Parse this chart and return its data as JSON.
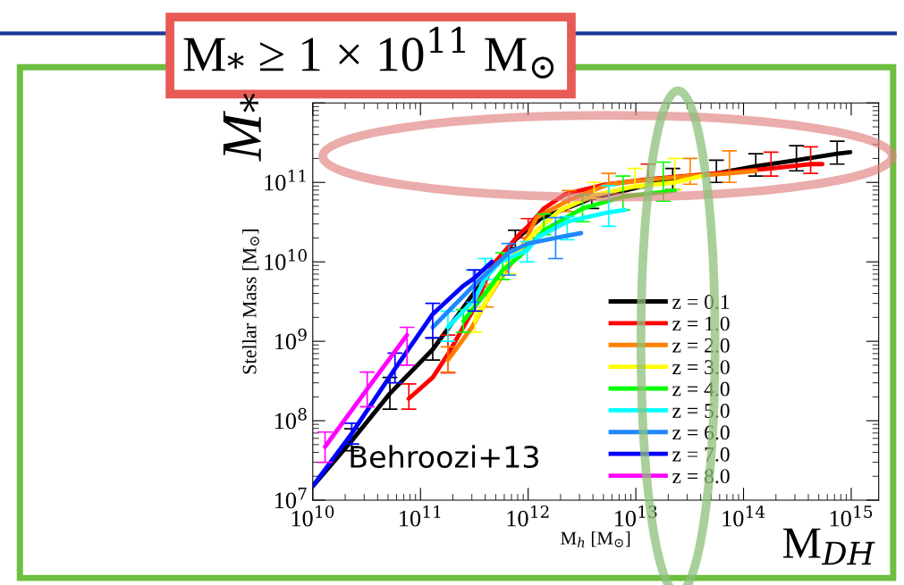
{
  "chart_data": {
    "type": "line",
    "title": "M$_{*}$ ≥ 1 × 10$^{11}$ M$_{⊙}$",
    "xlabel": "M$_{h}$ [M$_{⊙}$]",
    "ylabel": "Stellar Mass [M$_{⊙}$]",
    "annotations": [
      "M$_{*}$",
      "M$_{DH}$",
      "Behroozi+13"
    ],
    "log": "xy",
    "grid": false,
    "legend": "lower right",
    "xlim": [
      10000000000.0,
      1800000000000000.0
    ],
    "ylim": [
      10000000.0,
      1000000000000.0
    ],
    "xticks": [
      {
        "value": 10000000000.0,
        "label": "10$^{10}$"
      },
      {
        "value": 100000000000.0,
        "label": "10$^{11}$"
      },
      {
        "value": 1000000000000.0,
        "label": "10$^{12}$"
      },
      {
        "value": 10000000000000.0,
        "label": "10$^{13}$"
      },
      {
        "value": 100000000000000.0,
        "label": "10$^{14}$"
      },
      {
        "value": 1000000000000000.0,
        "label": "10$^{15}$"
      }
    ],
    "yticks": [
      {
        "value": 10000000.0,
        "label": "10$^{7}$"
      },
      {
        "value": 100000000.0,
        "label": "10$^{8}$"
      },
      {
        "value": 1000000000.0,
        "label": "10$^{9}$"
      },
      {
        "value": 10000000000.0,
        "label": "10$^{10}$"
      },
      {
        "value": 100000000000.0,
        "label": "10$^{11}$"
      },
      {
        "value": 1000000000000.0,
        "label": null
      }
    ],
    "series": [
      {
        "name": "z = 0.1",
        "color": "#000000",
        "x": [
          10000000000.0,
          23000000000.0,
          52000000000.0,
          130000000000.0,
          320000000000.0,
          760000000000.0,
          1300000000000.0,
          3900000000000.0,
          10000000000000.0,
          22000000000000.0,
          56000000000000.0,
          130000000000000.0,
          310000000000000.0,
          740000000000000.0,
          980000000000000.0
        ],
        "values": [
          15000000.0,
          56000000.0,
          220000000.0,
          790000000.0,
          4200000000.0,
          19000000000.0,
          35000000000.0,
          63000000000.0,
          85000000000.0,
          110000000000.0,
          130000000000.0,
          160000000000.0,
          190000000000.0,
          230000000000.0,
          240000000000.0
        ],
        "errors": [
          null,
          [
            42000000.0,
            79000000.0
          ],
          [
            140000000.0,
            350000000.0
          ],
          [
            580000000.0,
            1100000000.0
          ],
          null,
          [
            15000000000.0,
            25000000000.0
          ],
          null,
          [
            47000000000.0,
            85000000000.0
          ],
          null,
          [
            81000000000.0,
            150000000000.0
          ],
          [
            100000000000.0,
            190000000000.0
          ],
          [
            120000000000.0,
            230000000000.0
          ],
          [
            140000000000.0,
            290000000000.0
          ],
          [
            170000000000.0,
            330000000000.0
          ],
          null
        ]
      },
      {
        "name": "z = 1.0",
        "color": "#ff0000",
        "x": [
          78000000000.0,
          130000000000.0,
          180000000000.0,
          320000000000.0,
          460000000000.0,
          850000000000.0,
          1000000000000.0,
          1400000000000.0,
          2200000000000.0,
          5000000000000.0,
          13000000000000.0,
          54000000000000.0,
          180000000000000.0,
          420000000000000.0,
          540000000000000.0
        ],
        "values": [
          190000000.0,
          350000000.0,
          690000000.0,
          2700000000.0,
          8900000000.0,
          23000000000.0,
          28000000000.0,
          47000000000.0,
          71000000000.0,
          93000000000.0,
          110000000000.0,
          130000000000.0,
          150000000000.0,
          170000000000.0,
          170000000000.0
        ],
        "errors": [
          [
            140000000.0,
            290000000.0
          ],
          null,
          [
            400000000.0,
            1200000000.0
          ],
          null,
          null,
          null,
          [
            20000000000.0,
            35000000000.0
          ],
          null,
          null,
          null,
          [
            93000000000.0,
            170000000000.0
          ],
          null,
          [
            120000000000.0,
            240000000000.0
          ],
          [
            130000000000.0,
            280000000000.0
          ],
          null
        ]
      },
      {
        "name": "z = 2.0",
        "color": "#ff8000",
        "x": [
          180000000000.0,
          300000000000.0,
          410000000000.0,
          520000000000.0,
          850000000000.0,
          1200000000000.0,
          2400000000000.0,
          5600000000000.0,
          15000000000000.0,
          32000000000000.0,
          74000000000000.0,
          130000000000000.0
        ],
        "values": [
          580000000.0,
          1500000000.0,
          3200000000.0,
          5400000000.0,
          14000000000.0,
          36000000000.0,
          60000000000.0,
          95000000000.0,
          110000000000.0,
          120000000000.0,
          130000000000.0,
          140000000000.0
        ],
        "errors": [
          [
            410000000.0,
            850000000.0
          ],
          null,
          [
            2700000000.0,
            5200000000.0
          ],
          null,
          null,
          null,
          [
            43000000000.0,
            79000000000.0
          ],
          [
            76000000000.0,
            130000000000.0
          ],
          null,
          [
            95000000000.0,
            200000000000.0
          ],
          [
            100000000000.0,
            250000000000.0
          ],
          null
        ]
      },
      {
        "name": "z = 3.0",
        "color": "#ffff00",
        "x": [
          320000000000.0,
          660000000000.0,
          1200000000000.0,
          2000000000000.0,
          4100000000000.0,
          9800000000000.0,
          23000000000000.0,
          41000000000000.0
        ],
        "values": [
          1800000000.0,
          10000000000.0,
          25000000000.0,
          45000000000.0,
          69000000000.0,
          89000000000.0,
          100000000000.0,
          120000000000.0
        ],
        "errors": [
          [
            1300000000.0,
            2500000000.0
          ],
          [
            7100000000.0,
            13000000000.0
          ],
          null,
          null,
          [
            63000000000.0,
            100000000000.0
          ],
          [
            85000000000.0,
            150000000000.0
          ],
          [
            81000000000.0,
            200000000000.0
          ],
          null
        ]
      },
      {
        "name": "z = 4.0",
        "color": "#00ff00",
        "x": [
          250000000000.0,
          410000000000.0,
          580000000000.0,
          850000000000.0,
          1400000000000.0,
          3200000000000.0,
          7600000000000.0,
          18000000000000.0,
          23000000000000.0
        ],
        "values": [
          1800000000.0,
          4200000000.0,
          7900000000.0,
          12000000000.0,
          25000000000.0,
          47000000000.0,
          66000000000.0,
          76000000000.0,
          79000000000.0
        ],
        "errors": [
          [
            1300000000.0,
            2500000000.0
          ],
          null,
          [
            6000000000.0,
            13000000000.0
          ],
          null,
          [
            22000000000.0,
            40000000000.0
          ],
          [
            32000000000.0,
            69000000000.0
          ],
          [
            45000000000.0,
            120000000000.0
          ],
          [
            58000000000.0,
            180000000000.0
          ],
          null
        ]
      },
      {
        "name": "z = 5.0",
        "color": "#00ffff",
        "x": [
          180000000000.0,
          320000000000.0,
          400000000000.0,
          550000000000.0,
          980000000000.0,
          1200000000000.0,
          2300000000000.0,
          5600000000000.0,
          7900000000000.0
        ],
        "values": [
          1500000000.0,
          3400000000.0,
          6300000000.0,
          10000000000.0,
          14000000000.0,
          20000000000.0,
          32000000000.0,
          42000000000.0,
          45000000000.0
        ],
        "errors": [
          [
            1000000000.0,
            2400000000.0
          ],
          null,
          [
            6000000000.0,
            11000000000.0
          ],
          null,
          [
            10000000000.0,
            18000000000.0
          ],
          null,
          [
            19000000000.0,
            37000000000.0
          ],
          [
            28000000000.0,
            91000000000.0
          ],
          null
        ]
      },
      {
        "name": "z = 6.0",
        "color": "#1e88ff",
        "x": [
          130000000000.0,
          310000000000.0,
          660000000000.0,
          1000000000000.0,
          1800000000000.0,
          3100000000000.0
        ],
        "values": [
          1500000000.0,
          5000000000.0,
          13000000000.0,
          17000000000.0,
          20000000000.0,
          23000000000.0
        ],
        "errors": [
          null,
          [
            3100000000.0,
            7900000000.0
          ],
          [
            6800000000.0,
            17000000000.0
          ],
          null,
          [
            11000000000.0,
            36000000000.0
          ],
          null
        ]
      },
      {
        "name": "z = 7.0",
        "color": "#0000ff",
        "x": [
          10000000000.0,
          23000000000.0,
          58000000000.0,
          130000000000.0,
          250000000000.0,
          320000000000.0,
          460000000000.0
        ],
        "values": [
          15000000.0,
          69000000.0,
          450000000.0,
          2200000000.0,
          5000000000.0,
          6300000000.0,
          10000000000.0
        ],
        "errors": [
          null,
          [
            51000000.0,
            93000000.0
          ],
          [
            300000000.0,
            710000000.0
          ],
          [
            1100000000.0,
            3000000000.0
          ],
          null,
          [
            2400000000.0,
            7900000000.0
          ],
          null
        ]
      },
      {
        "name": "z = 8.0",
        "color": "#ff00ff",
        "x": [
          13000000000.0,
          32000000000.0,
          75000000000.0
        ],
        "values": [
          47000000.0,
          250000000.0,
          1200000000.0
        ],
        "errors": [
          [
            30000000.0,
            72000000.0
          ],
          [
            150000000.0,
            410000000.0
          ],
          [
            500000000.0,
            1500000000.0
          ]
        ]
      }
    ]
  }
}
